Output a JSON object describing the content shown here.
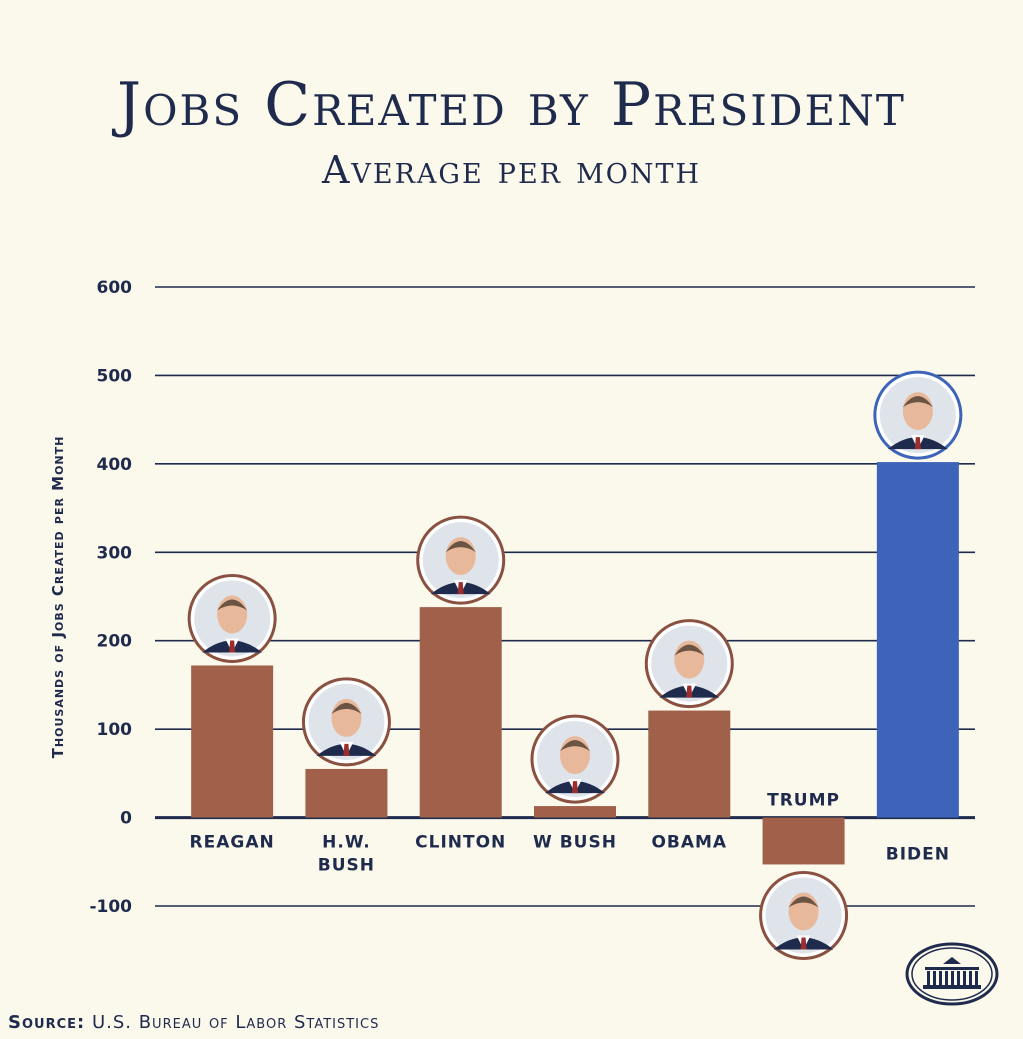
{
  "header": {
    "title": "Jobs Created by President",
    "subtitle": "Average per month"
  },
  "source": {
    "prefix": "Source:",
    "text": "U.S. Bureau of Labor Statistics"
  },
  "colors": {
    "background": "#fbf8ec",
    "navy": "#1f2b4d",
    "bar_default": "#a0604a",
    "bar_highlight": "#3d64b8",
    "portrait_ring_default": "#8a5040",
    "portrait_ring_highlight": "#3d64b8"
  },
  "icons": {
    "seal": "white-house-seal-icon",
    "portrait": "portrait-icon"
  },
  "chart_data": {
    "type": "bar",
    "title": "Jobs Created by President",
    "subtitle": "Average per month",
    "xlabel": "",
    "ylabel": "Thousands of Jobs Created per Month",
    "ylim": [
      -100,
      600
    ],
    "yticks": [
      600,
      500,
      400,
      300,
      200,
      100,
      0,
      -100
    ],
    "grid": true,
    "categories": [
      {
        "label": [
          "REAGAN"
        ],
        "value": 172,
        "highlight": false
      },
      {
        "label": [
          "H.W.",
          "BUSH"
        ],
        "value": 55,
        "highlight": false
      },
      {
        "label": [
          "CLINTON"
        ],
        "value": 238,
        "highlight": false
      },
      {
        "label": [
          "W BUSH"
        ],
        "value": 13,
        "highlight": false
      },
      {
        "label": [
          "OBAMA"
        ],
        "value": 121,
        "highlight": false
      },
      {
        "label": [
          "TRUMP"
        ],
        "value": -53,
        "highlight": false
      },
      {
        "label": [
          "BIDEN"
        ],
        "value": 402,
        "highlight": true
      }
    ]
  }
}
